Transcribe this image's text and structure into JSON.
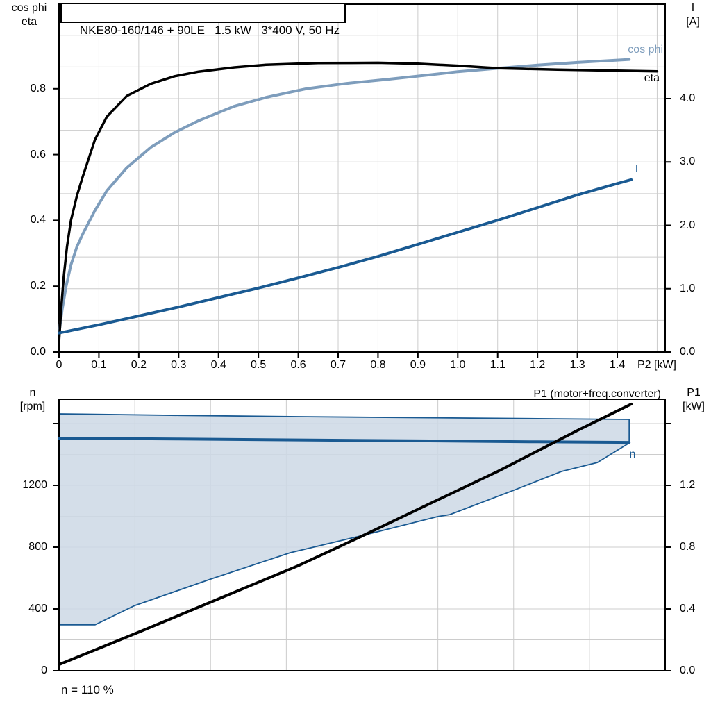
{
  "colors": {
    "eta": "#000000",
    "cos_phi": "#7E9DBC",
    "current": "#1A5A92",
    "speed": "#1A5A92",
    "p1_line": "#000000",
    "envelope_fill": "#CCD8E5",
    "envelope_edge": "#1A5A92",
    "grid": "#CCCCCC",
    "frame": "#000000"
  },
  "chart_data": [
    {
      "type": "line",
      "title": "NKE80-160/146 + 90LE   1.5 kW   3*400 V, 50 Hz",
      "x_axis": {
        "label": "P2 [kW]",
        "range": [
          0,
          1.52
        ],
        "ticks": [
          "0",
          "0.1",
          "0.2",
          "0.3",
          "0.4",
          "0.5",
          "0.6",
          "0.7",
          "0.8",
          "0.9",
          "1.0",
          "1.1",
          "1.2",
          "1.3",
          "1.4"
        ]
      },
      "left_axis": {
        "label_lines": [
          "cos phi",
          "eta"
        ],
        "range": [
          0,
          1.057
        ],
        "ticks": [
          "0.0",
          "0.2",
          "0.4",
          "0.6",
          "0.8"
        ]
      },
      "right_axis": {
        "label_lines": [
          "I",
          "[A]"
        ],
        "range": [
          0,
          5.49
        ],
        "ticks": [
          "0.0",
          "1.0",
          "2.0",
          "3.0",
          "4.0"
        ]
      },
      "grid": {
        "vertical_step": 0.1,
        "horizontal_step_right_axis": 0.5
      },
      "series": [
        {
          "name": "cos phi",
          "axis": "left",
          "color_key": "cos_phi",
          "points": [
            [
              0,
              0.055
            ],
            [
              0.008,
              0.13
            ],
            [
              0.018,
              0.2
            ],
            [
              0.03,
              0.265
            ],
            [
              0.045,
              0.32
            ],
            [
              0.06,
              0.36
            ],
            [
              0.09,
              0.43
            ],
            [
              0.12,
              0.49
            ],
            [
              0.17,
              0.56
            ],
            [
              0.23,
              0.622
            ],
            [
              0.29,
              0.667
            ],
            [
              0.35,
              0.703
            ],
            [
              0.44,
              0.747
            ],
            [
              0.52,
              0.774
            ],
            [
              0.62,
              0.8
            ],
            [
              0.72,
              0.816
            ],
            [
              0.82,
              0.828
            ],
            [
              0.92,
              0.841
            ],
            [
              1.0,
              0.852
            ],
            [
              1.1,
              0.862
            ],
            [
              1.2,
              0.872
            ],
            [
              1.3,
              0.88
            ],
            [
              1.4,
              0.887
            ],
            [
              1.43,
              0.889
            ]
          ]
        },
        {
          "name": "eta",
          "axis": "left",
          "color_key": "eta",
          "points": [
            [
              0,
              0.03
            ],
            [
              0.006,
              0.14
            ],
            [
              0.012,
              0.23
            ],
            [
              0.02,
              0.32
            ],
            [
              0.03,
              0.4
            ],
            [
              0.045,
              0.475
            ],
            [
              0.06,
              0.535
            ],
            [
              0.09,
              0.645
            ],
            [
              0.12,
              0.715
            ],
            [
              0.17,
              0.778
            ],
            [
              0.23,
              0.815
            ],
            [
              0.29,
              0.838
            ],
            [
              0.35,
              0.852
            ],
            [
              0.44,
              0.865
            ],
            [
              0.52,
              0.873
            ],
            [
              0.65,
              0.878
            ],
            [
              0.8,
              0.879
            ],
            [
              0.9,
              0.876
            ],
            [
              1.0,
              0.87
            ],
            [
              1.1,
              0.8625
            ],
            [
              1.25,
              0.858
            ],
            [
              1.4,
              0.855
            ],
            [
              1.5,
              0.853
            ]
          ]
        },
        {
          "name": "I",
          "axis": "right",
          "color_key": "current",
          "points": [
            [
              0,
              0.3
            ],
            [
              0.1,
              0.43
            ],
            [
              0.2,
              0.57
            ],
            [
              0.3,
              0.71
            ],
            [
              0.4,
              0.86
            ],
            [
              0.5,
              1.01
            ],
            [
              0.6,
              1.17
            ],
            [
              0.7,
              1.335
            ],
            [
              0.8,
              1.51
            ],
            [
              0.9,
              1.7
            ],
            [
              1.0,
              1.89
            ],
            [
              1.1,
              2.08
            ],
            [
              1.2,
              2.28
            ],
            [
              1.3,
              2.48
            ],
            [
              1.4,
              2.66
            ],
            [
              1.435,
              2.72
            ]
          ]
        }
      ]
    },
    {
      "type": "line+area",
      "note": "n = 110 %",
      "x_axis": {
        "label": "",
        "range": [
          0,
          1.52
        ],
        "ticks": []
      },
      "left_axis": {
        "label_lines": [
          "n",
          "[rpm]"
        ],
        "range": [
          0,
          1757
        ],
        "ticks": [
          "0",
          "400",
          "800",
          "1200"
        ],
        "unlabeled_ticks": [
          1600
        ]
      },
      "right_axis": {
        "label_lines": [
          "P1",
          "[kW]"
        ],
        "range": [
          0,
          1.757
        ],
        "ticks": [
          "0.0",
          "0.4",
          "0.8",
          "1.2"
        ],
        "unlabeled_ticks": [
          1.6
        ]
      },
      "grid": {
        "vertical_divisions": 8,
        "horizontal_step_rpm": 200
      },
      "area": {
        "name": "speed-operating-envelope",
        "axis": "left",
        "upper": [
          [
            0,
            1663
          ],
          [
            0.3,
            1653
          ],
          [
            0.6,
            1645
          ],
          [
            0.9,
            1638
          ],
          [
            1.2,
            1632
          ],
          [
            1.43,
            1627
          ]
        ],
        "lower": [
          [
            0,
            297
          ],
          [
            0.09,
            297
          ],
          [
            0.19,
            422
          ],
          [
            0.38,
            593
          ],
          [
            0.58,
            764
          ],
          [
            0.77,
            881
          ],
          [
            0.95,
            998
          ],
          [
            0.98,
            1011
          ],
          [
            1.15,
            1178
          ],
          [
            1.26,
            1290
          ],
          [
            1.35,
            1348
          ],
          [
            1.43,
            1474
          ]
        ]
      },
      "series": [
        {
          "name": "n",
          "axis": "left",
          "color_key": "speed",
          "points": [
            [
              0,
              1505
            ],
            [
              0.3,
              1500
            ],
            [
              0.6,
              1494
            ],
            [
              0.9,
              1488
            ],
            [
              1.2,
              1482
            ],
            [
              1.43,
              1478
            ]
          ]
        },
        {
          "name": "P1 (motor+freq.converter)",
          "axis": "right",
          "color_key": "p1_line",
          "points": [
            [
              0,
              0.04
            ],
            [
              0.2,
              0.25
            ],
            [
              0.4,
              0.465
            ],
            [
              0.6,
              0.68
            ],
            [
              0.76,
              0.872
            ],
            [
              0.9,
              1.045
            ],
            [
              1.1,
              1.29
            ],
            [
              1.3,
              1.555
            ],
            [
              1.435,
              1.726
            ]
          ]
        }
      ]
    }
  ]
}
